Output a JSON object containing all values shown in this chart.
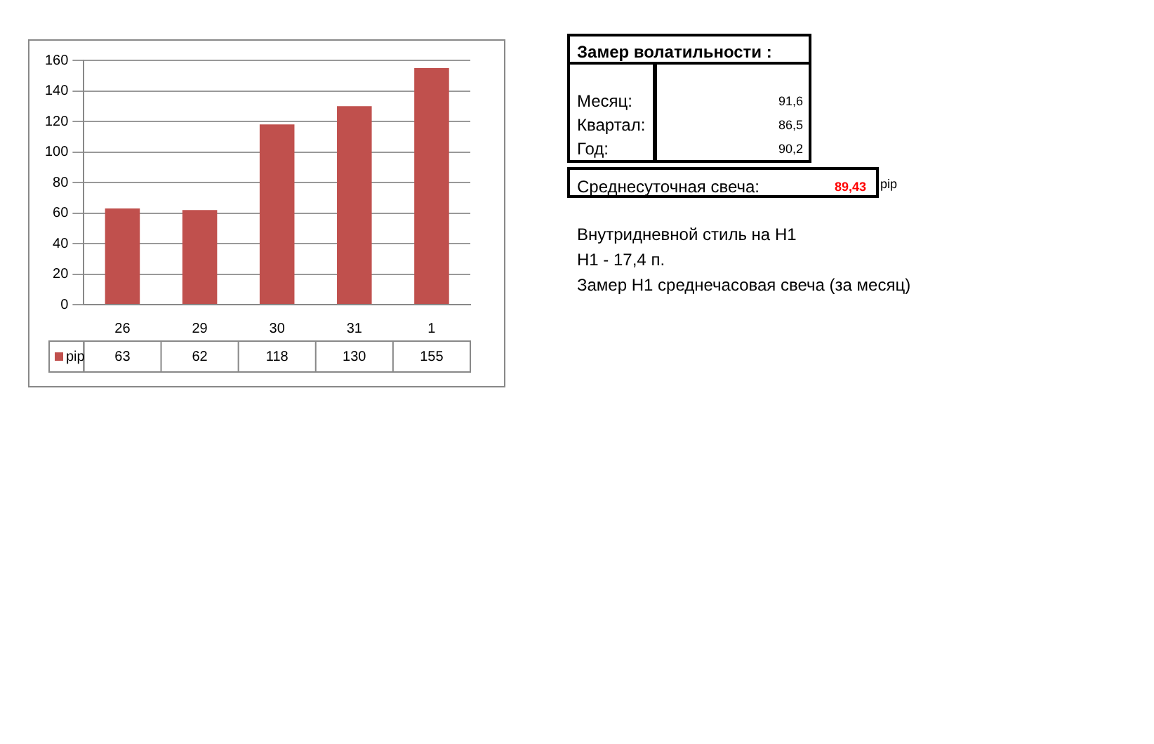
{
  "chart_data": [
    {
      "type": "bar",
      "categories": [
        "26",
        "29",
        "30",
        "31",
        "1"
      ],
      "series": [
        {
          "name": "pip",
          "color": "#c0504d",
          "values": [
            63,
            62,
            118,
            130,
            155
          ]
        }
      ],
      "ylim": [
        0,
        160
      ],
      "yticks": [
        0,
        20,
        40,
        60,
        80,
        100,
        120,
        140,
        160
      ],
      "grid": "y",
      "legend": "bottom left",
      "data_labels": true
    },
    {
      "type": "other",
      "annotations": [
        "Замер  волатильности  :",
        "Месяц:",
        "91,6",
        "Квартал:",
        "86,5",
        "Год:",
        "90,2",
        "Среднесуточная свеча:",
        "89,43",
        "pip",
        "Внутридневной стиль на H1",
        "H1 - 17,4 п.",
        "Замер H1 среднечасовая свеча (за месяц)"
      ]
    }
  ]
}
